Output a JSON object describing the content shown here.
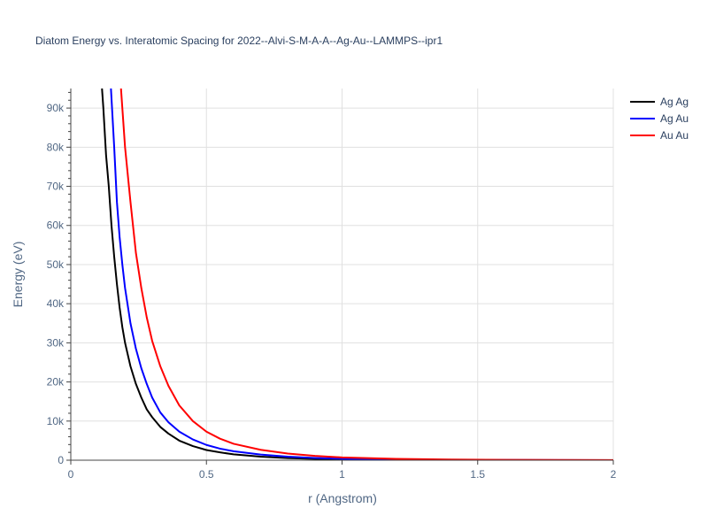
{
  "chart_data": {
    "type": "line",
    "title": "Diatom Energy vs. Interatomic Spacing for 2022--Alvi-S-M-A-A--Ag-Au--LAMMPS--ipr1",
    "xlabel": "r (Angstrom)",
    "ylabel": "Energy (eV)",
    "xlim": [
      0,
      2
    ],
    "ylim": [
      0,
      95000
    ],
    "x_ticks": [
      0,
      0.5,
      1,
      1.5,
      2
    ],
    "x_tick_labels": [
      "0",
      "0.5",
      "1",
      "1.5",
      "2"
    ],
    "y_ticks": [
      0,
      10000,
      20000,
      30000,
      40000,
      50000,
      60000,
      70000,
      80000,
      90000
    ],
    "y_tick_labels": [
      "0",
      "10k",
      "20k",
      "30k",
      "40k",
      "50k",
      "60k",
      "70k",
      "80k",
      "90k"
    ],
    "grid": true,
    "legend_position": "top-right",
    "series": [
      {
        "name": "Ag Ag",
        "color": "#000000",
        "x": [
          0.115,
          0.12,
          0.13,
          0.14,
          0.15,
          0.16,
          0.17,
          0.18,
          0.19,
          0.2,
          0.22,
          0.24,
          0.26,
          0.28,
          0.3,
          0.33,
          0.36,
          0.4,
          0.45,
          0.5,
          0.55,
          0.6,
          0.7,
          0.8,
          0.9,
          1.0,
          1.2,
          1.4,
          1.6,
          1.8,
          2.0
        ],
        "y": [
          95000,
          90000,
          78000,
          70000,
          60000,
          52000,
          45000,
          39000,
          34000,
          30000,
          24000,
          19500,
          16000,
          13000,
          11000,
          8500,
          6800,
          5000,
          3600,
          2600,
          2000,
          1500,
          900,
          550,
          340,
          220,
          100,
          50,
          25,
          12,
          5
        ]
      },
      {
        "name": "Ag Au",
        "color": "#0000ff",
        "x": [
          0.148,
          0.16,
          0.17,
          0.18,
          0.19,
          0.2,
          0.22,
          0.24,
          0.26,
          0.28,
          0.3,
          0.33,
          0.36,
          0.4,
          0.45,
          0.5,
          0.55,
          0.6,
          0.7,
          0.8,
          0.9,
          1.0,
          1.2,
          1.4,
          1.6,
          1.8,
          2.0
        ],
        "y": [
          95000,
          80000,
          66000,
          57000,
          50000,
          44000,
          35000,
          28500,
          23500,
          19500,
          16000,
          12200,
          9700,
          7300,
          5300,
          3900,
          2950,
          2300,
          1450,
          900,
          580,
          380,
          180,
          90,
          45,
          22,
          10
        ]
      },
      {
        "name": "Au Au",
        "color": "#ff0000",
        "x": [
          0.185,
          0.2,
          0.22,
          0.24,
          0.26,
          0.28,
          0.3,
          0.33,
          0.36,
          0.4,
          0.45,
          0.5,
          0.55,
          0.6,
          0.7,
          0.8,
          0.9,
          1.0,
          1.2,
          1.4,
          1.6,
          1.8,
          2.0
        ],
        "y": [
          95000,
          80000,
          66000,
          53000,
          44000,
          36500,
          30500,
          24000,
          19000,
          14000,
          10000,
          7300,
          5500,
          4200,
          2650,
          1700,
          1100,
          720,
          350,
          180,
          90,
          45,
          20
        ]
      }
    ]
  }
}
